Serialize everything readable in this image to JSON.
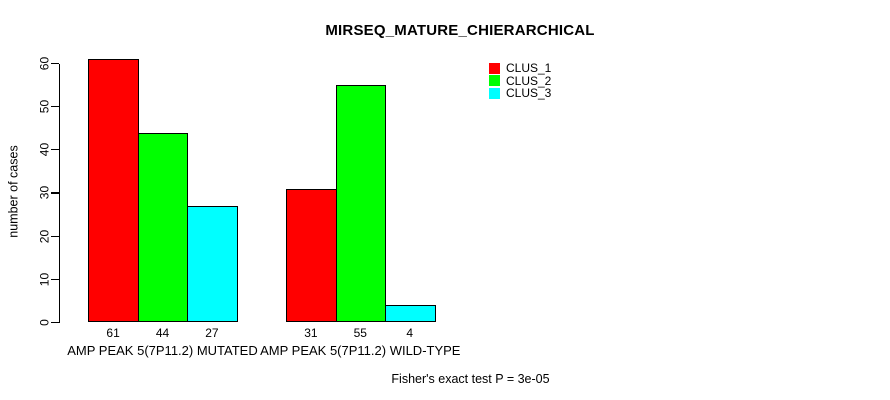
{
  "title": "MIRSEQ_MATURE_CHIERARCHICAL",
  "footer": "Fisher's exact test P = 3e-05",
  "chart_data": {
    "type": "bar",
    "title": "MIRSEQ_MATURE_CHIERARCHICAL",
    "xlabel": "",
    "ylabel": "number of cases",
    "ylim": [
      0,
      60
    ],
    "yticks": [
      0,
      10,
      20,
      30,
      40,
      50,
      60
    ],
    "grid": false,
    "legend_position": "top-right",
    "annotation": "Fisher's exact test P = 3e-05",
    "categories": [
      "AMP PEAK 5(7P11.2) MUTATED",
      "AMP PEAK 5(7P11.2) WILD-TYPE"
    ],
    "series": [
      {
        "name": "CLUS_1",
        "color": "#ff0000",
        "values": [
          61,
          31
        ]
      },
      {
        "name": "CLUS_2",
        "color": "#00ff00",
        "values": [
          44,
          55
        ]
      },
      {
        "name": "CLUS_3",
        "color": "#00ffff",
        "values": [
          27,
          4
        ]
      }
    ],
    "bar_value_labels": [
      [
        61,
        44,
        27
      ],
      [
        31,
        55,
        4
      ]
    ]
  }
}
